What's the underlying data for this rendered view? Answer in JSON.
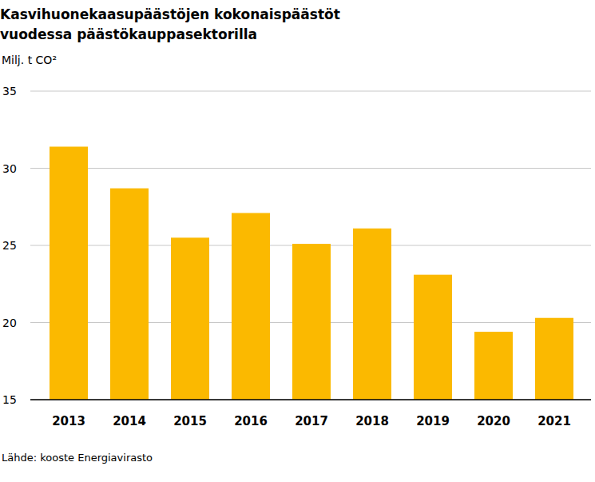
{
  "chart_data": {
    "type": "bar",
    "title": "Kasvihuonekaasupäästöjen kokonaispäästöt vuodessa päästökauppasektorilla",
    "subtitle": "Milj. t CO²",
    "source": "Lähde: kooste Energiavirasto",
    "categories": [
      "2013",
      "2014",
      "2015",
      "2016",
      "2017",
      "2018",
      "2019",
      "2020",
      "2021"
    ],
    "values": [
      31.4,
      28.7,
      25.5,
      27.1,
      25.1,
      26.1,
      23.1,
      19.4,
      20.3
    ],
    "color": "#fbb900",
    "ylim": [
      15,
      35
    ],
    "yticks": [
      15,
      20,
      25,
      30,
      35
    ],
    "grid": true
  }
}
